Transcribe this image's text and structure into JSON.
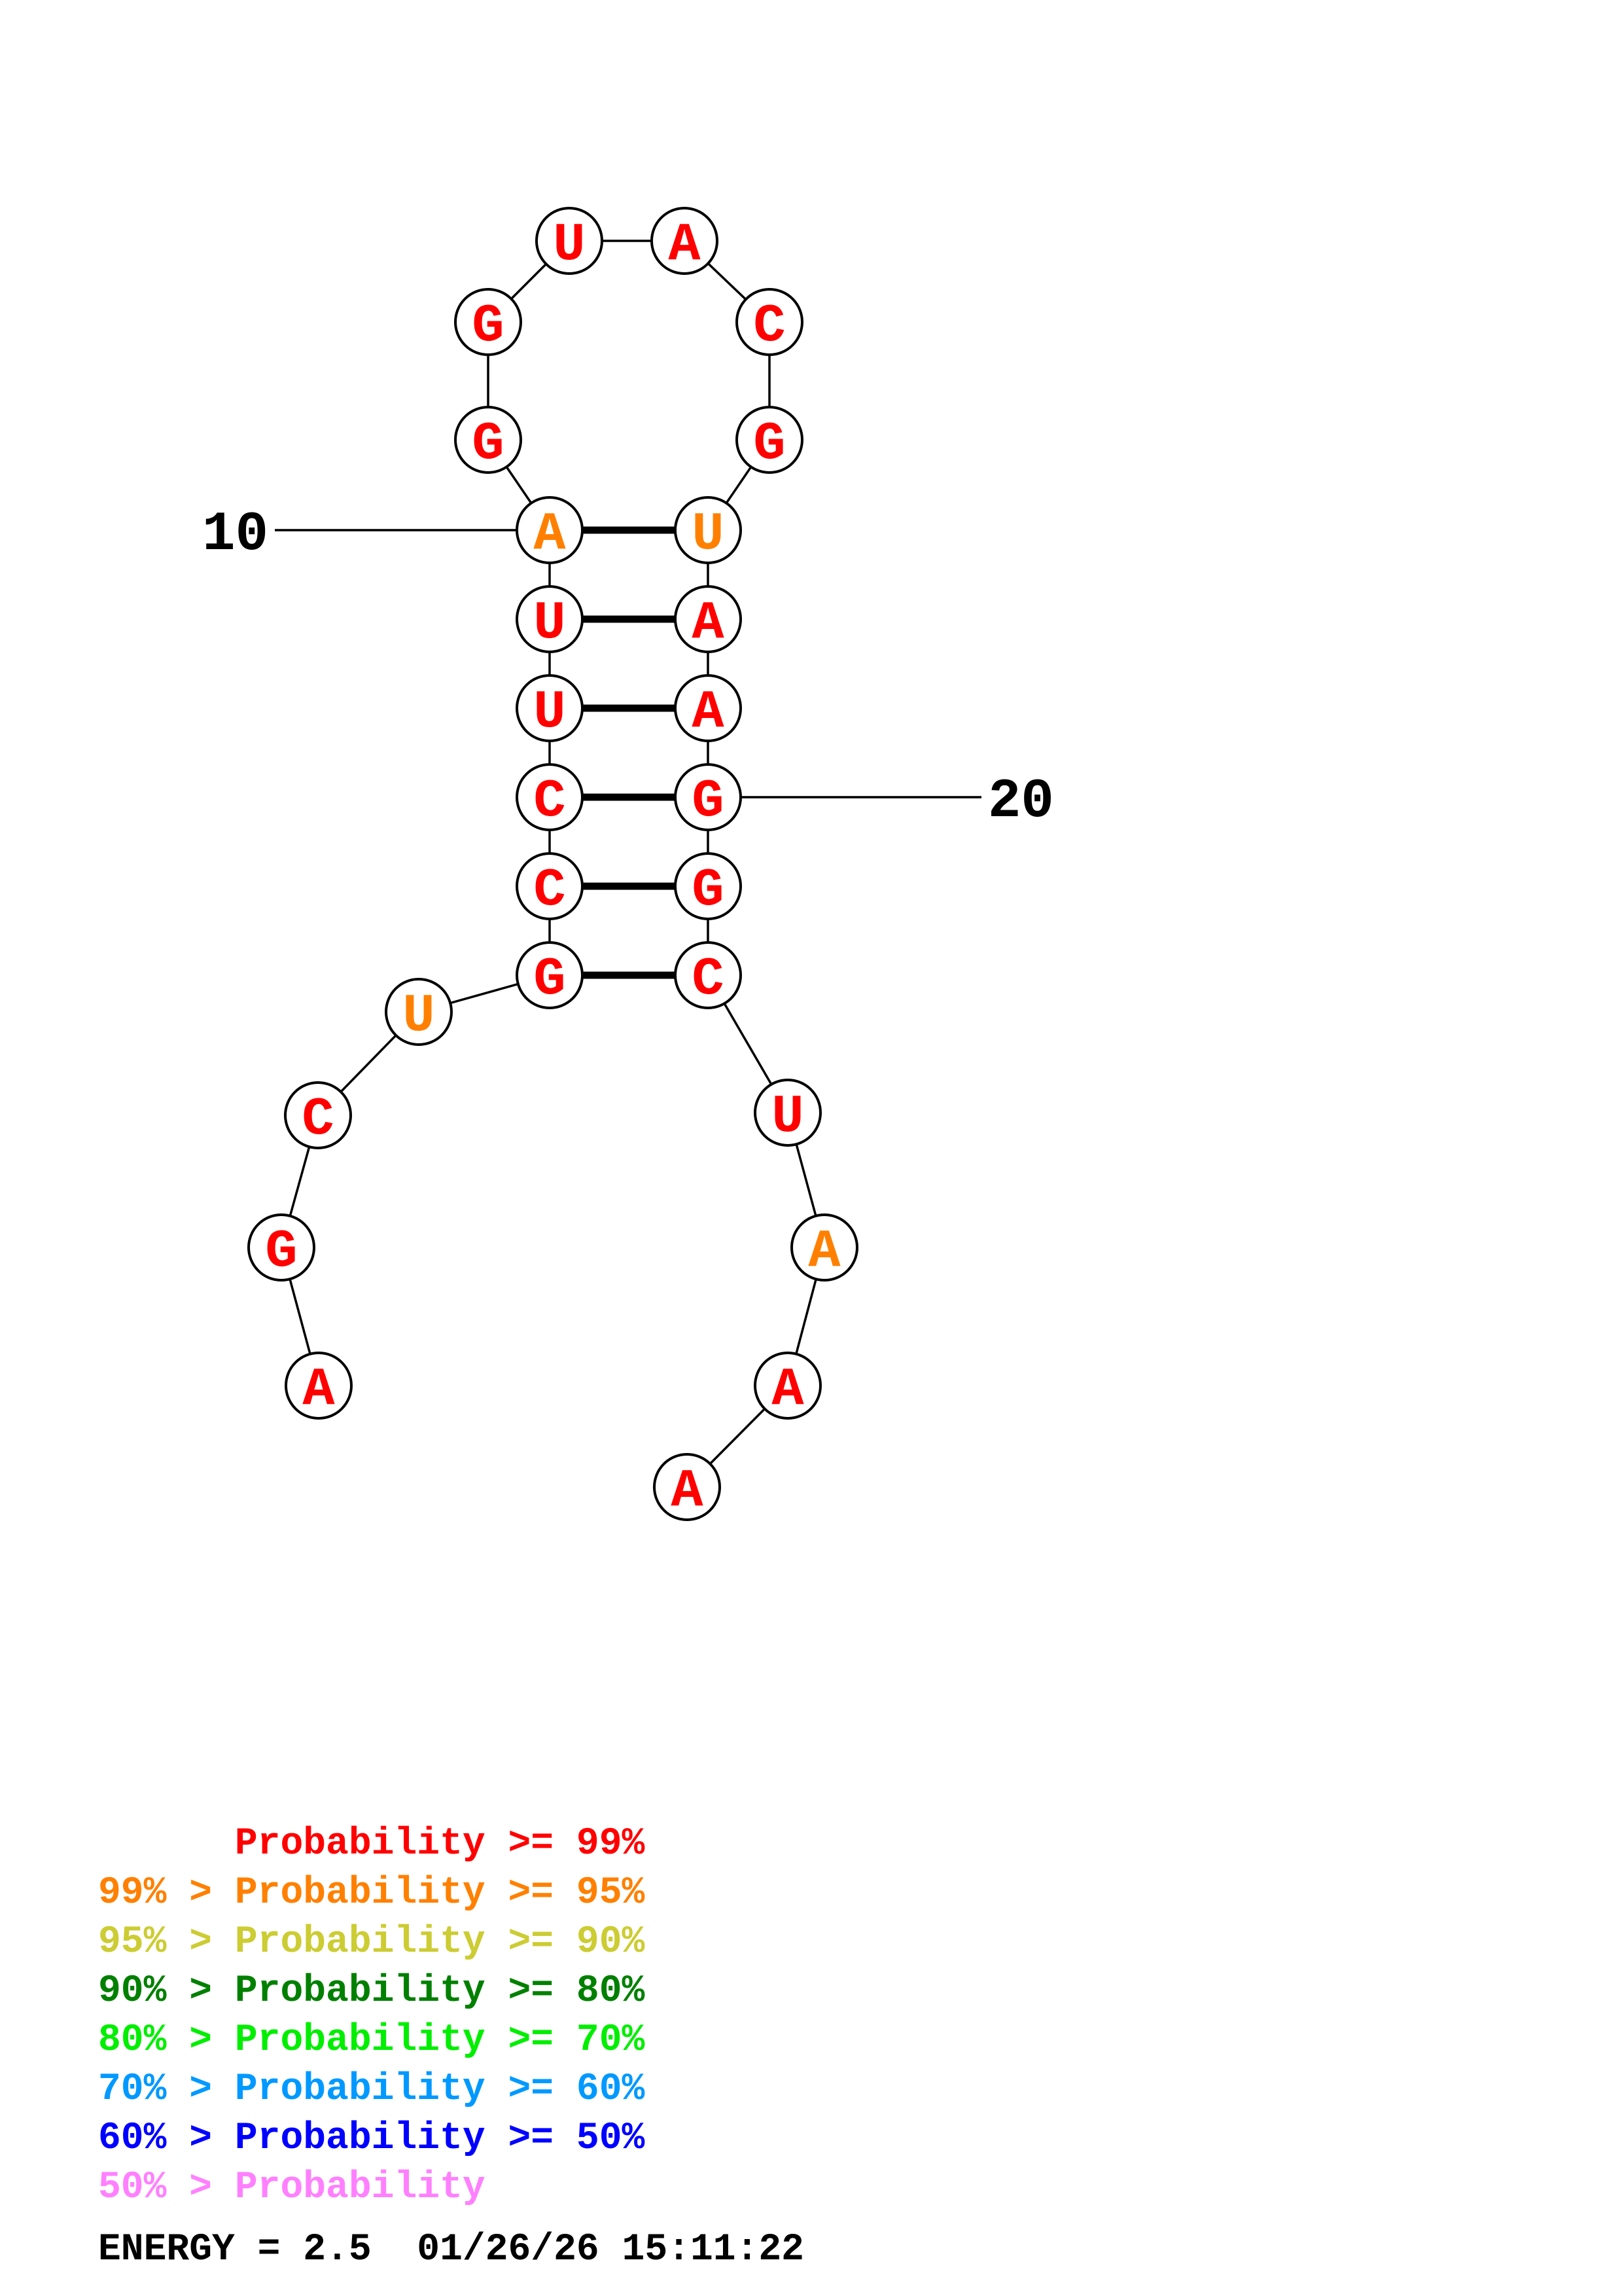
{
  "structure": {
    "nucleotides": [
      {
        "index": 1,
        "base": "A",
        "color": "#ff0000"
      },
      {
        "index": 2,
        "base": "G",
        "color": "#ff0000"
      },
      {
        "index": 3,
        "base": "C",
        "color": "#ff0000"
      },
      {
        "index": 4,
        "base": "U",
        "color": "#ff8000"
      },
      {
        "index": 5,
        "base": "G",
        "color": "#ff0000"
      },
      {
        "index": 6,
        "base": "C",
        "color": "#ff0000"
      },
      {
        "index": 7,
        "base": "C",
        "color": "#ff0000"
      },
      {
        "index": 8,
        "base": "U",
        "color": "#ff0000"
      },
      {
        "index": 9,
        "base": "U",
        "color": "#ff0000"
      },
      {
        "index": 10,
        "base": "A",
        "color": "#ff8000"
      },
      {
        "index": 11,
        "base": "G",
        "color": "#ff0000"
      },
      {
        "index": 12,
        "base": "G",
        "color": "#ff0000"
      },
      {
        "index": 13,
        "base": "U",
        "color": "#ff0000"
      },
      {
        "index": 14,
        "base": "A",
        "color": "#ff0000"
      },
      {
        "index": 15,
        "base": "C",
        "color": "#ff0000"
      },
      {
        "index": 16,
        "base": "G",
        "color": "#ff0000"
      },
      {
        "index": 17,
        "base": "U",
        "color": "#ff8000"
      },
      {
        "index": 18,
        "base": "A",
        "color": "#ff0000"
      },
      {
        "index": 19,
        "base": "A",
        "color": "#ff0000"
      },
      {
        "index": 20,
        "base": "G",
        "color": "#ff0000"
      },
      {
        "index": 21,
        "base": "G",
        "color": "#ff0000"
      },
      {
        "index": 22,
        "base": "C",
        "color": "#ff0000"
      },
      {
        "index": 23,
        "base": "U",
        "color": "#ff0000"
      },
      {
        "index": 24,
        "base": "A",
        "color": "#ff8000"
      },
      {
        "index": 25,
        "base": "A",
        "color": "#ff0000"
      },
      {
        "index": 26,
        "base": "A",
        "color": "#ff0000"
      }
    ],
    "pairs": [
      [
        5,
        22
      ],
      [
        6,
        21
      ],
      [
        7,
        20
      ],
      [
        8,
        19
      ],
      [
        9,
        18
      ],
      [
        10,
        17
      ]
    ],
    "position_labels": [
      {
        "index": 10,
        "text": "10"
      },
      {
        "index": 20,
        "text": "20"
      }
    ]
  },
  "legend": [
    {
      "text": "      Probability >= 99%",
      "color": "#ff0000"
    },
    {
      "text": "99% > Probability >= 95%",
      "color": "#ff8000"
    },
    {
      "text": "95% > Probability >= 90%",
      "color": "#cccc33"
    },
    {
      "text": "90% > Probability >= 80%",
      "color": "#008000"
    },
    {
      "text": "80% > Probability >= 70%",
      "color": "#00ee00"
    },
    {
      "text": "70% > Probability >= 60%",
      "color": "#0099ff"
    },
    {
      "text": "60% > Probability >= 50%",
      "color": "#0000ff"
    },
    {
      "text": "50% > Probability",
      "color": "#ff80ff"
    }
  ],
  "footer": {
    "energy": "ENERGY = 2.5  01/26/26 15:11:22"
  }
}
